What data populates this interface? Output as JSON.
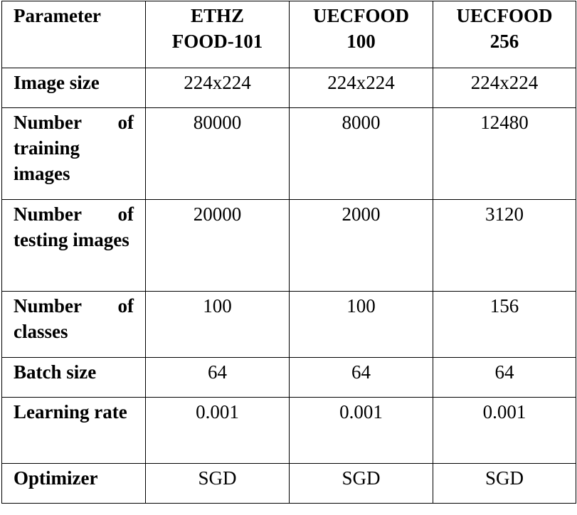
{
  "table": {
    "header": {
      "parameter": "Parameter",
      "datasets": [
        {
          "line1": "ETHZ",
          "line2": "FOOD-101"
        },
        {
          "line1": "UECFOOD",
          "line2": "100"
        },
        {
          "line1": "UECFOOD",
          "line2": "256"
        }
      ]
    },
    "rows": [
      {
        "label": "Image size",
        "values": [
          "224x224",
          "224x224",
          "224x224"
        ]
      },
      {
        "label": "Number of training images",
        "values": [
          "80000",
          "8000",
          "12480"
        ]
      },
      {
        "label": "Number of testing images",
        "values": [
          "20000",
          "2000",
          "3120"
        ]
      },
      {
        "label": "Number of classes",
        "values": [
          "100",
          "100",
          "156"
        ]
      },
      {
        "label": "Batch size",
        "values": [
          "64",
          "64",
          "64"
        ]
      },
      {
        "label": "Learning rate",
        "values": [
          "0.001",
          "0.001",
          "0.001"
        ]
      },
      {
        "label": "Optimizer",
        "values": [
          "SGD",
          "SGD",
          "SGD"
        ]
      }
    ]
  }
}
